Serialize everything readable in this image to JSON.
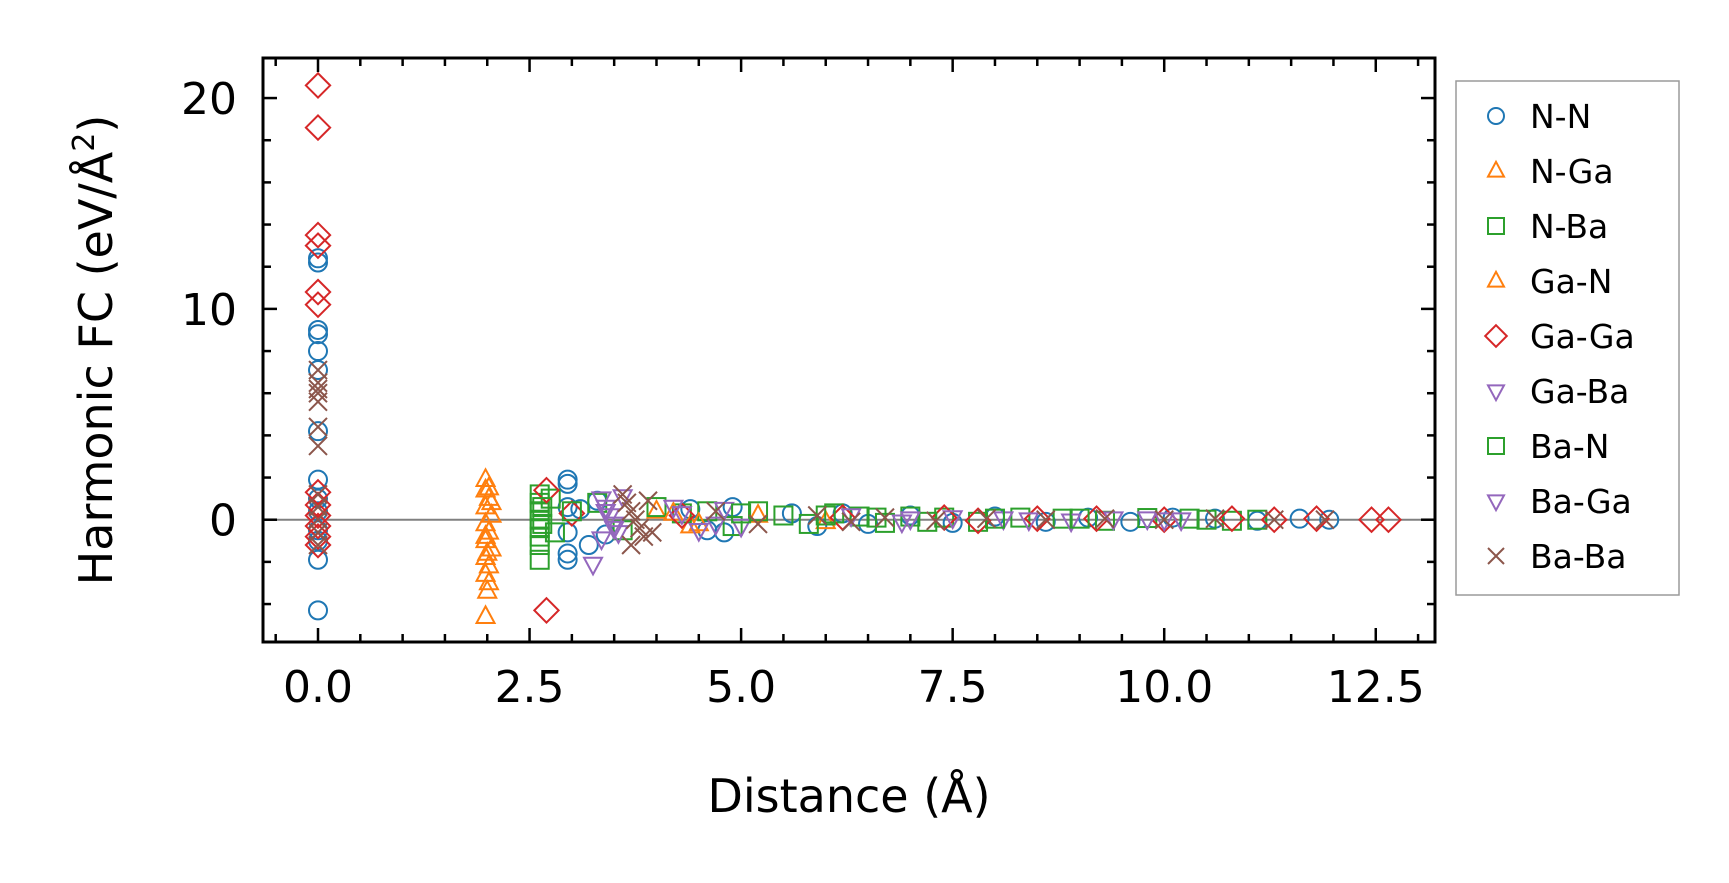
{
  "chart_data": {
    "type": "scatter",
    "title": "",
    "xlabel": "Distance (Å)",
    "ylabel_main": "Harmonic FC (eV/Å",
    "ylabel_sup": "2",
    "ylabel_close": ")",
    "xlim": [
      -0.65,
      13.2
    ],
    "ylim": [
      -5.8,
      21.9
    ],
    "xticks": [
      0,
      2.5,
      5,
      7.5,
      10,
      12.5
    ],
    "xtick_labels": [
      "0.0",
      "2.5",
      "5.0",
      "7.5",
      "10.0",
      "12.5"
    ],
    "yticks": [
      0,
      10,
      20
    ],
    "ytick_labels": [
      "0",
      "10",
      "20"
    ],
    "zero_line": true,
    "grid": false,
    "legend_position": "outside-right",
    "series": [
      {
        "name": "N-N",
        "marker": "circle",
        "color": "#1f77b4",
        "points": [
          [
            0,
            12.4
          ],
          [
            0,
            12.2
          ],
          [
            0,
            9
          ],
          [
            0,
            8.8
          ],
          [
            0,
            8
          ],
          [
            0,
            7.1
          ],
          [
            0,
            4.2
          ],
          [
            0,
            1.9
          ],
          [
            0,
            1
          ],
          [
            0,
            0.4
          ],
          [
            0,
            -0.5
          ],
          [
            0,
            -1
          ],
          [
            0,
            -1.9
          ],
          [
            0,
            -4.3
          ],
          [
            2.95,
            1.9
          ],
          [
            2.95,
            1.7
          ],
          [
            2.95,
            0.6
          ],
          [
            2.95,
            -0.6
          ],
          [
            2.95,
            -1.6
          ],
          [
            2.95,
            -1.9
          ],
          [
            3.1,
            0.5
          ],
          [
            3.2,
            -1.2
          ],
          [
            3.3,
            0.9
          ],
          [
            3.4,
            -0.7
          ],
          [
            4.4,
            0.5
          ],
          [
            4.6,
            -0.5
          ],
          [
            4.9,
            0.6
          ],
          [
            4.8,
            -0.6
          ],
          [
            5.6,
            0.3
          ],
          [
            5.9,
            -0.3
          ],
          [
            6.2,
            0.3
          ],
          [
            6.5,
            -0.2
          ],
          [
            7.0,
            0.2
          ],
          [
            7.5,
            -0.15
          ],
          [
            8.0,
            0.15
          ],
          [
            8.6,
            -0.1
          ],
          [
            9.1,
            0.1
          ],
          [
            9.6,
            -0.1
          ],
          [
            10.1,
            0.1
          ],
          [
            10.6,
            0.05
          ],
          [
            11.1,
            -0.05
          ],
          [
            11.6,
            0.05
          ],
          [
            11.95,
            0
          ]
        ]
      },
      {
        "name": "N-Ga",
        "marker": "triangle-up",
        "color": "#ff7f0e",
        "points": [
          [
            1.98,
            1.9
          ],
          [
            1.98,
            1.4
          ],
          [
            2.02,
            1
          ],
          [
            1.98,
            0.6
          ],
          [
            2.05,
            0.2
          ],
          [
            1.98,
            -0.2
          ],
          [
            2.02,
            -0.6
          ],
          [
            1.98,
            -1
          ],
          [
            2.05,
            -1.4
          ],
          [
            1.98,
            -1.8
          ],
          [
            2.02,
            -2.2
          ],
          [
            1.98,
            -2.6
          ],
          [
            2.02,
            -3
          ],
          [
            2,
            -3.4
          ],
          [
            1.98,
            -4.6
          ],
          [
            2.05,
            0.8
          ],
          [
            1.98,
            -0.8
          ],
          [
            4.0,
            0.4
          ],
          [
            4.4,
            -0.3
          ],
          [
            5.2,
            0.2
          ],
          [
            6.0,
            -0.1
          ]
        ]
      },
      {
        "name": "N-Ba",
        "marker": "square",
        "color": "#2ca02c",
        "points": [
          [
            2.62,
            1.2
          ],
          [
            2.62,
            0.8
          ],
          [
            2.62,
            0.4
          ],
          [
            2.62,
            0
          ],
          [
            2.62,
            -0.4
          ],
          [
            2.62,
            -0.8
          ],
          [
            2.62,
            -1.2
          ],
          [
            2.62,
            -1.9
          ],
          [
            2.75,
            1
          ],
          [
            2.8,
            -0.6
          ],
          [
            3.3,
            0.8
          ],
          [
            3.6,
            -0.5
          ],
          [
            4.0,
            0.6
          ],
          [
            4.3,
            0.3
          ],
          [
            4.6,
            0.4
          ],
          [
            4.9,
            -0.3
          ],
          [
            5.2,
            0.4
          ],
          [
            5.5,
            0.2
          ],
          [
            5.8,
            -0.2
          ],
          [
            6.1,
            0.3
          ],
          [
            6.4,
            0.15
          ],
          [
            6.7,
            -0.15
          ],
          [
            7.0,
            0.15
          ],
          [
            7.4,
            0.1
          ],
          [
            7.8,
            -0.1
          ],
          [
            8.3,
            0.1
          ],
          [
            8.8,
            0.05
          ],
          [
            9.3,
            -0.05
          ],
          [
            9.8,
            0.08
          ],
          [
            10.3,
            0.05
          ],
          [
            10.8,
            -0.05
          ],
          [
            11.1,
            0
          ]
        ]
      },
      {
        "name": "Ga-N",
        "marker": "triangle-up",
        "color": "#ff7f0e",
        "points": [
          [
            2.02,
            1.5
          ],
          [
            2,
            -1.6
          ],
          [
            4.2,
            0.3
          ],
          [
            4.5,
            -0.2
          ]
        ]
      },
      {
        "name": "Ga-Ga",
        "marker": "diamond",
        "color": "#d62728",
        "points": [
          [
            0,
            20.6
          ],
          [
            0,
            18.6
          ],
          [
            0,
            13.5
          ],
          [
            0,
            13
          ],
          [
            0,
            10.8
          ],
          [
            0,
            10.2
          ],
          [
            0,
            1.3
          ],
          [
            0,
            0.7
          ],
          [
            0,
            0.2
          ],
          [
            0,
            -0.3
          ],
          [
            0,
            -0.8
          ],
          [
            0,
            -1.2
          ],
          [
            2.7,
            1.4
          ],
          [
            2.7,
            -4.3
          ],
          [
            3.0,
            0.3
          ],
          [
            4.3,
            0.2
          ],
          [
            6.2,
            0.1
          ],
          [
            7.4,
            0.1
          ],
          [
            7.8,
            -0.05
          ],
          [
            8.5,
            0.05
          ],
          [
            9.2,
            0.05
          ],
          [
            10.0,
            0
          ],
          [
            10.8,
            0.05
          ],
          [
            11.3,
            0
          ],
          [
            11.8,
            0.05
          ],
          [
            12.45,
            0
          ],
          [
            12.65,
            0
          ]
        ]
      },
      {
        "name": "Ga-Ba",
        "marker": "triangle-down",
        "color": "#9467bd",
        "points": [
          [
            3.25,
            -2.1
          ],
          [
            3.35,
            1
          ],
          [
            3.4,
            0.6
          ],
          [
            3.45,
            0.2
          ],
          [
            3.5,
            -0.2
          ],
          [
            3.55,
            -0.6
          ],
          [
            3.6,
            1.1
          ],
          [
            3.35,
            -0.9
          ],
          [
            4.2,
            0.6
          ],
          [
            4.5,
            -0.5
          ],
          [
            4.8,
            0.5
          ],
          [
            5.0,
            -0.3
          ],
          [
            6.3,
            0.2
          ],
          [
            6.9,
            -0.1
          ],
          [
            7.5,
            0.1
          ],
          [
            8.1,
            0.05
          ],
          [
            8.9,
            -0.05
          ],
          [
            9.4,
            0.05
          ],
          [
            10.2,
            0
          ]
        ]
      },
      {
        "name": "Ba-N",
        "marker": "square",
        "color": "#2ca02c",
        "points": [
          [
            2.65,
            0.6
          ],
          [
            2.65,
            -0.2
          ],
          [
            3.0,
            0.4
          ],
          [
            5.0,
            0.3
          ],
          [
            6.0,
            0.2
          ],
          [
            6.6,
            0.1
          ],
          [
            7.2,
            -0.1
          ],
          [
            8.0,
            0.05
          ],
          [
            9.0,
            0.05
          ],
          [
            10.5,
            0
          ]
        ]
      },
      {
        "name": "Ba-Ga",
        "marker": "triangle-down",
        "color": "#9467bd",
        "points": [
          [
            3.4,
            0.4
          ],
          [
            3.5,
            -0.4
          ],
          [
            4.3,
            0.3
          ],
          [
            4.7,
            -0.2
          ],
          [
            7.0,
            0.05
          ],
          [
            8.4,
            0
          ],
          [
            9.8,
            0.05
          ],
          [
            10.0,
            0
          ]
        ]
      },
      {
        "name": "Ba-Ba",
        "marker": "x",
        "color": "#8c564b",
        "points": [
          [
            0,
            7.1
          ],
          [
            0,
            6.5
          ],
          [
            0,
            6.2
          ],
          [
            0,
            6
          ],
          [
            0,
            5.6
          ],
          [
            0,
            4.4
          ],
          [
            0,
            3.5
          ],
          [
            0,
            1.2
          ],
          [
            0,
            0.6
          ],
          [
            0,
            0
          ],
          [
            0,
            -0.6
          ],
          [
            0,
            -1.2
          ],
          [
            3.6,
            1.2
          ],
          [
            3.65,
            0.8
          ],
          [
            3.7,
            0.4
          ],
          [
            3.75,
            0
          ],
          [
            3.8,
            -0.4
          ],
          [
            3.85,
            -0.8
          ],
          [
            3.7,
            -1.2
          ],
          [
            3.9,
            0.9
          ],
          [
            3.95,
            -0.6
          ],
          [
            4.7,
            0.4
          ],
          [
            5.2,
            -0.2
          ],
          [
            5.9,
            0.2
          ],
          [
            6.3,
            -0.1
          ],
          [
            6.7,
            0.1
          ],
          [
            7.3,
            -0.05
          ],
          [
            7.9,
            0.05
          ],
          [
            8.6,
            0
          ],
          [
            9.3,
            0.05
          ],
          [
            10.0,
            0
          ],
          [
            10.6,
            0.05
          ],
          [
            11.3,
            0
          ],
          [
            11.9,
            0
          ]
        ]
      }
    ]
  }
}
